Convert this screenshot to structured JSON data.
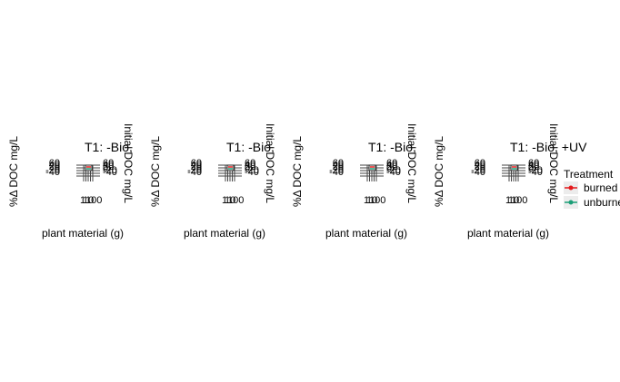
{
  "chart_data": [
    {
      "type": "line",
      "title": "T1: -Bio,",
      "xlabel": "plant material (g)",
      "ylabel": "%Δ DOC mg/L",
      "ylabel_right": "Initial DOC mg/L",
      "y_ticks_left": [
        "60",
        "40",
        "20",
        "0",
        "-20",
        "-40"
      ],
      "y_ticks_right": [
        "60",
        "40",
        "20",
        "0",
        "-20",
        "-40"
      ],
      "x_ticks": [
        "1",
        "10",
        "100"
      ],
      "series": [
        {
          "name": "burned",
          "color": "#e41a1c"
        },
        {
          "name": "unburned",
          "color": "#1b9e77"
        }
      ]
    },
    {
      "type": "line",
      "title": "T1: -Bio,",
      "xlabel": "plant material (g)",
      "ylabel": "%Δ DOC mg/L",
      "ylabel_right": "Initial DOC mg/L",
      "y_ticks_left": [
        "60",
        "40",
        "20",
        "0",
        "-20",
        "-40"
      ],
      "y_ticks_right": [
        "60",
        "40",
        "20",
        "0",
        "-20",
        "-40"
      ],
      "x_ticks": [
        "1",
        "10",
        "100"
      ],
      "series": [
        {
          "name": "burned",
          "color": "#e41a1c"
        },
        {
          "name": "unburned",
          "color": "#1b9e77"
        }
      ]
    },
    {
      "type": "line",
      "title": "T1: -Bio,",
      "xlabel": "plant material (g)",
      "ylabel": "%Δ DOC mg/L",
      "ylabel_right": "Initial DOC mg/L",
      "y_ticks_left": [
        "60",
        "40",
        "20",
        "0",
        "-20",
        "-40"
      ],
      "y_ticks_right": [
        "60",
        "40",
        "20",
        "0",
        "-20",
        "-40"
      ],
      "x_ticks": [
        "1",
        "10",
        "100"
      ],
      "series": [
        {
          "name": "burned",
          "color": "#e41a1c"
        },
        {
          "name": "unburned",
          "color": "#1b9e77"
        }
      ]
    },
    {
      "type": "line",
      "title": "T1: -Bio, +UV",
      "xlabel": "plant material (g)",
      "ylabel": "%Δ DOC mg/L",
      "ylabel_right": "Initial DOC mg/L",
      "y_ticks_left": [
        "60",
        "40",
        "20",
        "0",
        "-20",
        "-40"
      ],
      "y_ticks_right": [
        "60",
        "40",
        "20",
        "0",
        "-20",
        "-40"
      ],
      "x_ticks": [
        "1",
        "10",
        "100"
      ],
      "series": [
        {
          "name": "burned",
          "color": "#e41a1c"
        },
        {
          "name": "unburned",
          "color": "#1b9e77"
        }
      ]
    }
  ],
  "legend": {
    "title": "Treatment",
    "items": [
      {
        "label": "burned",
        "color": "#e41a1c"
      },
      {
        "label": "unburned",
        "color": "#1b9e77"
      }
    ]
  }
}
